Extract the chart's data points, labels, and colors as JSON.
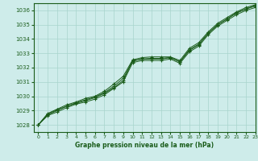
{
  "title": "Graphe pression niveau de la mer (hPa)",
  "bg_color": "#ceecea",
  "grid_color": "#a8d4cc",
  "line_color": "#1a5c1a",
  "xlim": [
    -0.5,
    23
  ],
  "ylim": [
    1027.5,
    1036.5
  ],
  "xticks": [
    0,
    1,
    2,
    3,
    4,
    5,
    6,
    7,
    8,
    9,
    10,
    11,
    12,
    13,
    14,
    15,
    16,
    17,
    18,
    19,
    20,
    21,
    22,
    23
  ],
  "yticks": [
    1028,
    1029,
    1030,
    1031,
    1032,
    1033,
    1034,
    1035,
    1036
  ],
  "series": [
    [
      1028.0,
      1028.7,
      1029.0,
      1029.3,
      1029.5,
      1029.7,
      1029.9,
      1030.2,
      1030.6,
      1031.1,
      1032.5,
      1032.6,
      1032.6,
      1032.6,
      1032.7,
      1032.4,
      1033.2,
      1033.6,
      1034.4,
      1035.0,
      1035.4,
      1035.8,
      1036.1,
      1036.3
    ],
    [
      1028.0,
      1028.8,
      1029.1,
      1029.4,
      1029.6,
      1029.85,
      1030.0,
      1030.35,
      1030.85,
      1031.4,
      1032.55,
      1032.7,
      1032.75,
      1032.75,
      1032.75,
      1032.5,
      1033.35,
      1033.75,
      1034.5,
      1035.1,
      1035.5,
      1035.9,
      1036.2,
      1036.4
    ],
    [
      1028.0,
      1028.65,
      1028.9,
      1029.2,
      1029.45,
      1029.6,
      1029.8,
      1030.1,
      1030.55,
      1031.0,
      1032.35,
      1032.5,
      1032.5,
      1032.5,
      1032.6,
      1032.3,
      1033.1,
      1033.5,
      1034.3,
      1034.9,
      1035.3,
      1035.7,
      1036.0,
      1036.2
    ],
    [
      1028.0,
      1028.75,
      1029.05,
      1029.3,
      1029.55,
      1029.75,
      1029.95,
      1030.25,
      1030.7,
      1031.25,
      1032.45,
      1032.6,
      1032.65,
      1032.65,
      1032.7,
      1032.4,
      1033.25,
      1033.65,
      1034.4,
      1035.0,
      1035.4,
      1035.85,
      1036.1,
      1036.35
    ]
  ]
}
